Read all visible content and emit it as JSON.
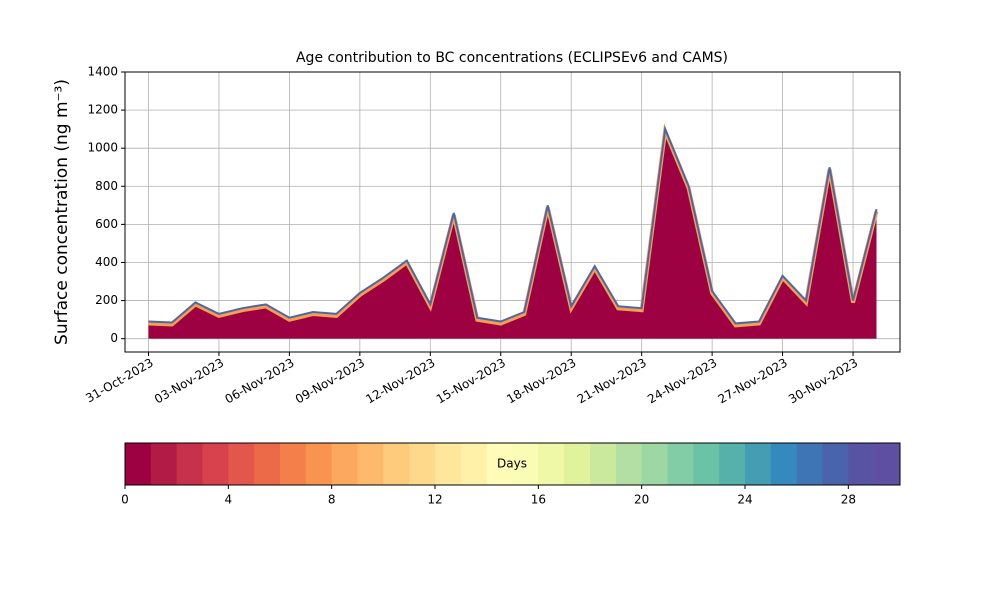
{
  "chart_data": {
    "type": "area",
    "title": "Age contribution to BC concentrations (ECLIPSEv6 and CAMS)",
    "ylabel": "Surface concentration (ng m⁻³)",
    "x": [
      "2023-10-31",
      "2023-11-01",
      "2023-11-02",
      "2023-11-03",
      "2023-11-04",
      "2023-11-05",
      "2023-11-06",
      "2023-11-07",
      "2023-11-08",
      "2023-11-09",
      "2023-11-10",
      "2023-11-11",
      "2023-11-12",
      "2023-11-13",
      "2023-11-14",
      "2023-11-15",
      "2023-11-16",
      "2023-11-17",
      "2023-11-18",
      "2023-11-19",
      "2023-11-20",
      "2023-11-21",
      "2023-11-22",
      "2023-11-23",
      "2023-11-24",
      "2023-11-25",
      "2023-11-26",
      "2023-11-27",
      "2023-11-28",
      "2023-11-29",
      "2023-11-30",
      "2023-12-01"
    ],
    "series": [
      {
        "color": "#9e0142",
        "line_color": "#4b67ac",
        "values": [
          90,
          85,
          190,
          130,
          160,
          180,
          110,
          140,
          130,
          240,
          320,
          410,
          180,
          660,
          110,
          90,
          140,
          700,
          170,
          380,
          170,
          160,
          1100,
          800,
          250,
          80,
          90,
          330,
          200,
          900,
          200,
          680
        ]
      }
    ],
    "xlim": [
      "2023-10-30",
      "2023-12-02"
    ],
    "xticks": [
      {
        "value": "2023-10-31",
        "label": "31-Oct-2023"
      },
      {
        "value": "2023-11-03",
        "label": "03-Nov-2023"
      },
      {
        "value": "2023-11-06",
        "label": "06-Nov-2023"
      },
      {
        "value": "2023-11-09",
        "label": "09-Nov-2023"
      },
      {
        "value": "2023-11-12",
        "label": "12-Nov-2023"
      },
      {
        "value": "2023-11-15",
        "label": "15-Nov-2023"
      },
      {
        "value": "2023-11-18",
        "label": "18-Nov-2023"
      },
      {
        "value": "2023-11-21",
        "label": "21-Nov-2023"
      },
      {
        "value": "2023-11-24",
        "label": "24-Nov-2023"
      },
      {
        "value": "2023-11-27",
        "label": "27-Nov-2023"
      },
      {
        "value": "2023-11-30",
        "label": "30-Nov-2023"
      }
    ],
    "ylim": [
      -70,
      1400
    ],
    "yticks": [
      0,
      200,
      400,
      600,
      800,
      1000,
      1200,
      1400
    ],
    "grid": true,
    "colorbar": {
      "label": "Days",
      "lim": [
        0,
        30
      ],
      "ticks": [
        0,
        4,
        8,
        12,
        16,
        20,
        24,
        28
      ],
      "colors": [
        "#9e0142",
        "#b31b47",
        "#c8314b",
        "#d8424d",
        "#e3564c",
        "#ed6a48",
        "#f47f4a",
        "#f8944f",
        "#fca85e",
        "#fdba6c",
        "#fdcb7b",
        "#fed98b",
        "#fee79a",
        "#fff1a8",
        "#fffbb8",
        "#f9fcb5",
        "#eff8a6",
        "#e0f29b",
        "#cbe99d",
        "#b3e0a2",
        "#9cd7a4",
        "#82cda5",
        "#6bc3a5",
        "#57b1ab",
        "#449db3",
        "#3489bd",
        "#3e76b5",
        "#4a63ad",
        "#5a52a3",
        "#5e4fa2"
      ]
    }
  }
}
